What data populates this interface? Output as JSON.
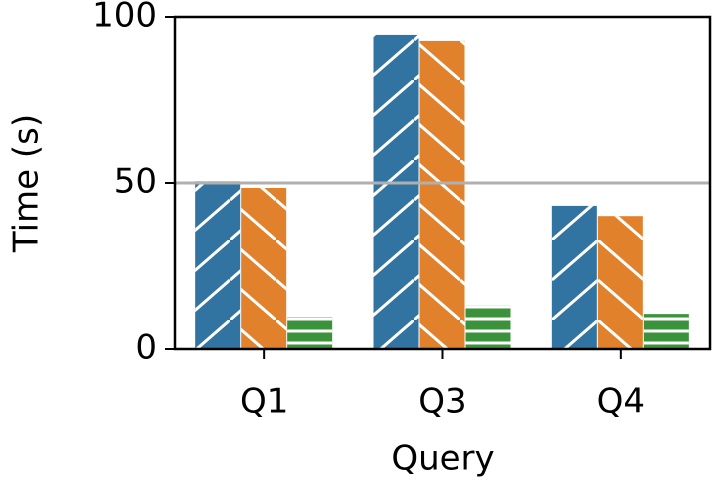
{
  "chart_data": {
    "type": "bar",
    "x_label": "Query",
    "y_label": "Time (s)",
    "categories": [
      "Q1",
      "Q3",
      "Q4"
    ],
    "series": [
      {
        "color": "#3274a1",
        "hatch": "/",
        "values": [
          50.5,
          94.6,
          43.1
        ]
      },
      {
        "color": "#e1812c",
        "hatch": "\\",
        "values": [
          48.5,
          92.8,
          40
        ]
      },
      {
        "color": "#3a923a",
        "hatch": "-",
        "values": [
          9.6,
          13,
          10.5
        ]
      }
    ],
    "ylim": [
      0,
      100
    ],
    "yticks": [
      0,
      50,
      100
    ],
    "reference_line": 50,
    "reference_color": "#b0b0b0",
    "legend": false
  }
}
